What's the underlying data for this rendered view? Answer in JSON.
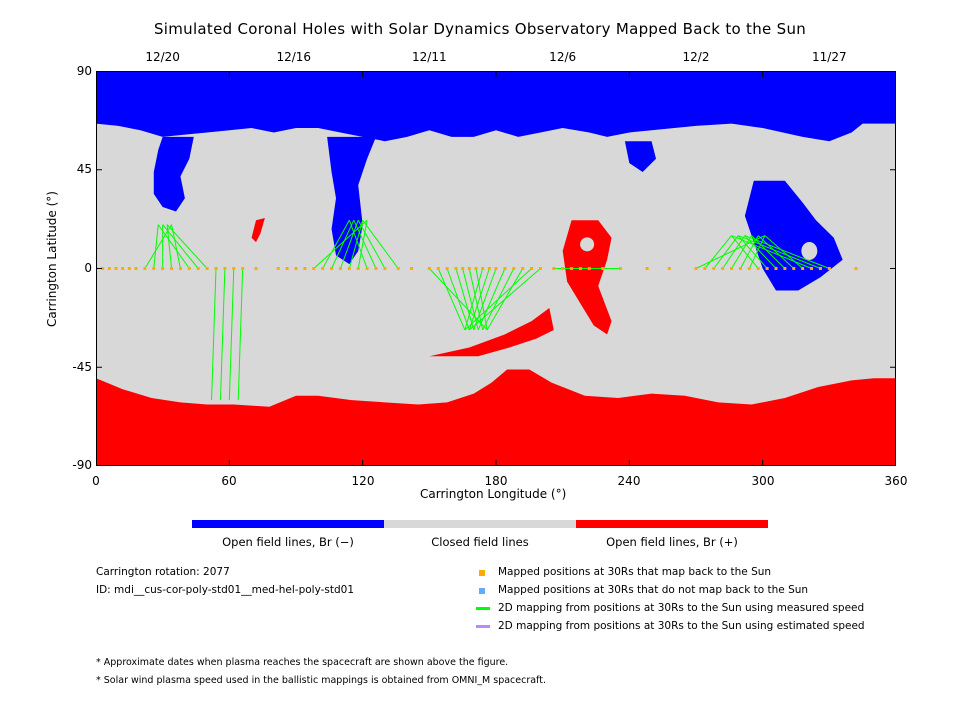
{
  "chart_data": {
    "type": "map",
    "title": "Simulated Coronal Holes with Solar Dynamics Observatory Mapped Back to the Sun",
    "xlabel": "Carrington Longitude (°)",
    "ylabel": "Carrington Latitude (°)",
    "xlim": [
      0,
      360
    ],
    "ylim": [
      -90,
      90
    ],
    "x_ticks": [
      "0",
      "60",
      "120",
      "180",
      "240",
      "300",
      "360"
    ],
    "y_ticks": [
      "90",
      "45",
      "0",
      "-45",
      "-90"
    ],
    "top_dates": [
      {
        "label": "12/20",
        "lon": 30
      },
      {
        "label": "12/16",
        "lon": 89
      },
      {
        "label": "12/11",
        "lon": 150
      },
      {
        "label": "12/6",
        "lon": 210
      },
      {
        "label": "12/2",
        "lon": 270
      },
      {
        "label": "11/27",
        "lon": 330
      }
    ],
    "colors": {
      "open_negative": "#0000ff",
      "closed": "#d8d8d8",
      "open_positive": "#ff0000",
      "mapped": "#ffaa00",
      "not_mapped": "#66aaff",
      "measured_line": "#00ff00",
      "estimated_line": "#bb88ff"
    },
    "regions": {
      "north_polar_hole_boundary_lat": 66,
      "south_polar_hole_boundary_lat": -50,
      "blue_extensions": [
        {
          "lon": 34,
          "lat_top": 60,
          "lat_bottom": 28
        },
        {
          "lon": 112,
          "lat_top": 60,
          "lat_bottom": 8
        },
        {
          "lon": 302,
          "lat_top": 35,
          "lat_bottom": -10
        }
      ],
      "red_extensions": [
        {
          "lon": 225,
          "lat_top": 22,
          "lat_bottom": -30
        },
        {
          "lon": 175,
          "lat_top": -22,
          "lat_bottom": -40
        },
        {
          "lon": 74,
          "lat_top": 22,
          "lat_bottom": 12
        }
      ]
    },
    "mapped_longitudes": [
      0,
      3,
      6,
      9,
      12,
      15,
      18,
      22,
      26,
      30,
      34,
      38,
      42,
      46,
      50,
      54,
      58,
      62,
      66,
      72,
      82,
      86,
      90,
      94,
      98,
      102,
      106,
      110,
      114,
      118,
      122,
      126,
      130,
      136,
      142,
      150,
      154,
      158,
      162,
      165,
      168,
      171,
      174,
      177,
      180,
      184,
      188,
      192,
      196,
      200,
      206,
      210,
      214,
      218,
      222,
      228,
      236,
      248,
      258,
      270,
      274,
      278,
      282,
      286,
      290,
      294,
      298,
      302,
      306,
      310,
      314,
      318,
      322,
      326,
      330,
      342
    ],
    "info": {
      "rotation": "Carrington rotation: 2077",
      "id": "ID: mdi__cus-cor-poly-std01__med-hel-poly-std01"
    },
    "colorbar_labels": [
      "Open field lines, Br (−)",
      "Closed field lines",
      "Open field lines, Br (+)"
    ],
    "legend": [
      "Mapped positions at 30Rs that map back to the Sun",
      "Mapped positions at 30Rs that do not map back to the Sun",
      "2D mapping from positions at 30Rs to the Sun using measured speed",
      "2D mapping from positions at 30Rs to the Sun using estimated speed"
    ],
    "notes": [
      "* Approximate dates when plasma reaches the spacecraft are shown above the figure.",
      "* Solar wind plasma speed used in the ballistic mappings is obtained from OMNI_M spacecraft."
    ]
  }
}
